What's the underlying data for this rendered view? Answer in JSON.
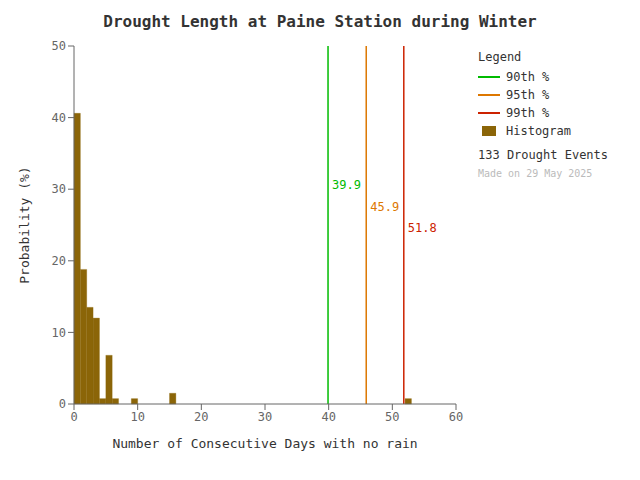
{
  "chart_data": {
    "type": "histogram",
    "title": "Drought Length at Paine Station during Winter",
    "x_label": "Number of Consecutive Days with no rain",
    "y_label": "Probability (%)",
    "bins": [
      0,
      1,
      2,
      3,
      4,
      5,
      6,
      7,
      8,
      9,
      10,
      11,
      12,
      13,
      14,
      15,
      16,
      17,
      18,
      19,
      20,
      21,
      22,
      23,
      24,
      25,
      26,
      27,
      28,
      29,
      30,
      31,
      32,
      33,
      34,
      35,
      36,
      37,
      38,
      39,
      40,
      41,
      42,
      43,
      44,
      45,
      46,
      47,
      48,
      49,
      50,
      51,
      52,
      53,
      54,
      55,
      56,
      57,
      58,
      59,
      60
    ],
    "series": [
      {
        "name": "Histogram",
        "color": "#8B6508",
        "values": [
          40.6,
          18.8,
          13.5,
          12.0,
          0.75,
          6.8,
          0.75,
          0.0,
          0.0,
          0.75,
          0.0,
          0.0,
          0.0,
          0.0,
          0.0,
          1.5,
          0.0,
          0.0,
          0.0,
          0.0,
          0.0,
          0.0,
          0.0,
          0.0,
          0.0,
          0.0,
          0.0,
          0.0,
          0.0,
          0.0,
          0.0,
          0.0,
          0.0,
          0.0,
          0.0,
          0.0,
          0.0,
          0.0,
          0.0,
          0.0,
          0.0,
          0.0,
          0.0,
          0.0,
          0.0,
          0.0,
          0.0,
          0.0,
          0.0,
          0.0,
          0.0,
          0.0,
          0.75,
          0.0,
          0.0,
          0.0,
          0.0,
          0.0,
          0.0,
          0.0
        ]
      }
    ],
    "reference_lines": [
      {
        "name": "90th %",
        "x": 39.9,
        "color": "#00BB00",
        "label": "39.9",
        "label_y": 30
      },
      {
        "name": "95th %",
        "x": 45.9,
        "color": "#DD7700",
        "label": "45.9",
        "label_y": 27
      },
      {
        "name": "99th %",
        "x": 51.8,
        "color": "#CC2200",
        "label": "51.8",
        "label_y": 24
      }
    ],
    "xlim": [
      0,
      60
    ],
    "ylim": [
      0,
      50
    ],
    "xticks": [
      0,
      10,
      20,
      30,
      40,
      50,
      60
    ],
    "yticks": [
      0,
      10,
      20,
      30,
      40,
      50
    ],
    "grid": false,
    "legend": "right",
    "legend_title": "Legend",
    "notes": [
      {
        "text": "133 Drought Events"
      },
      {
        "text": "Made on 29 May 2025",
        "color": "#BBBBBB"
      }
    ]
  }
}
